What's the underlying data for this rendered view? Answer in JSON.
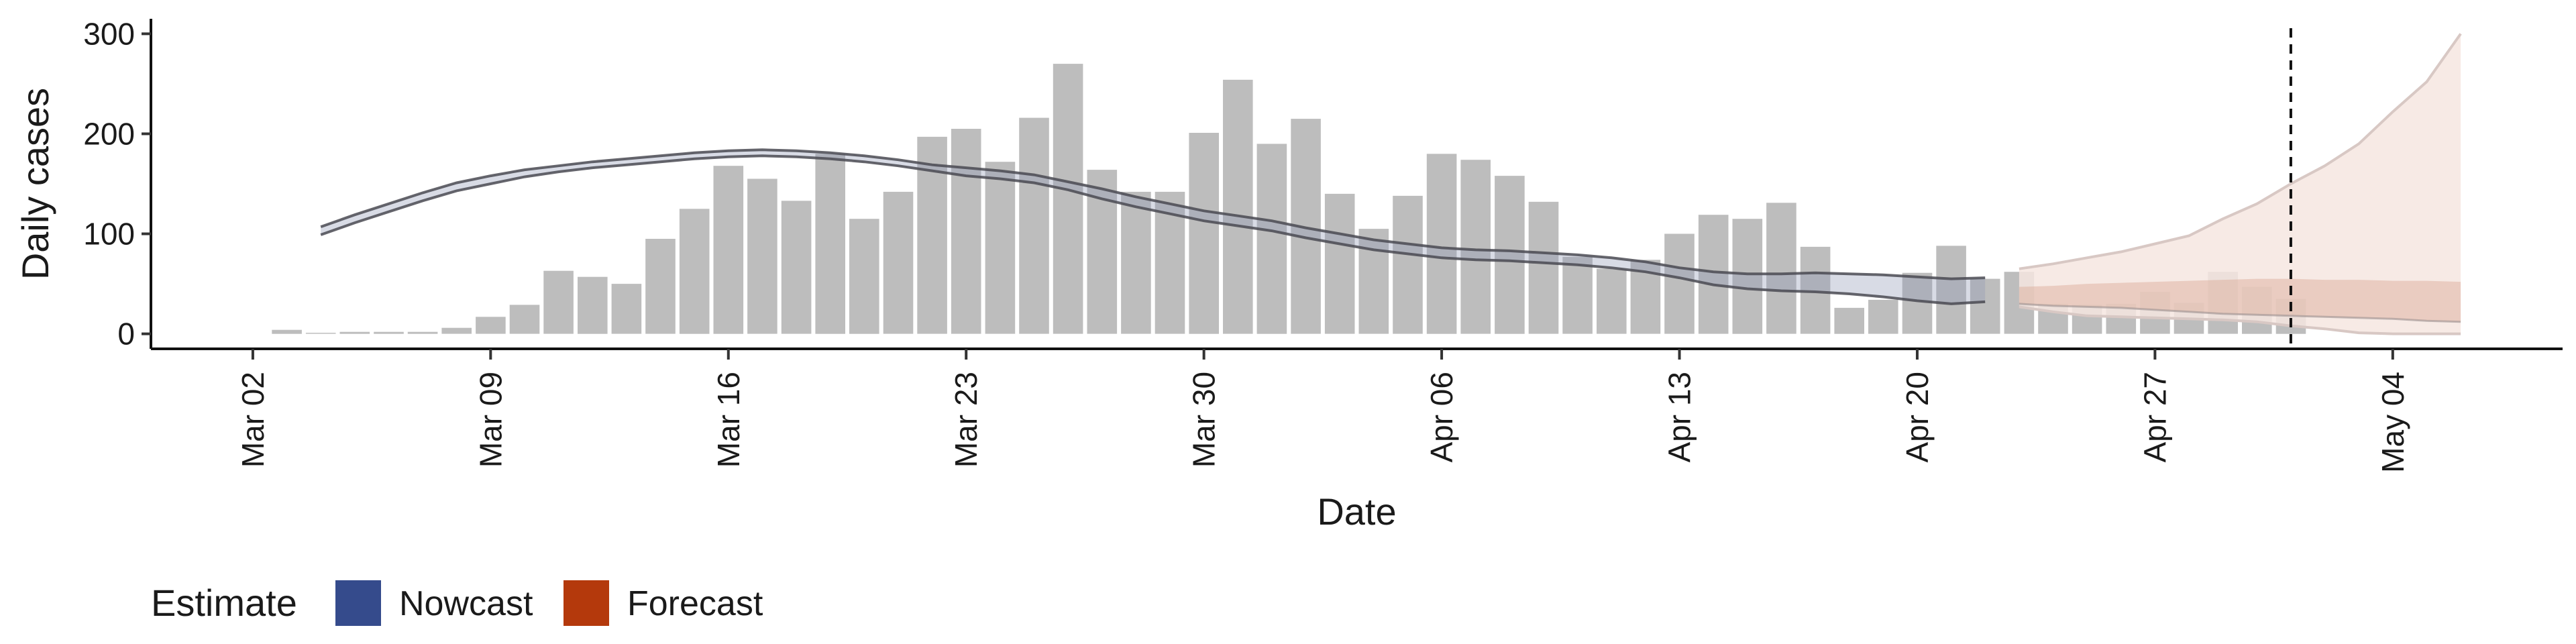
{
  "chart_data": {
    "type": "bar",
    "title": "",
    "xlabel": "Date",
    "ylabel": "Daily cases",
    "ylim": [
      -15,
      315
    ],
    "yticks": [
      0,
      100,
      200,
      300
    ],
    "xlim": [
      "2020-02-28",
      "2020-05-09"
    ],
    "xticks": [
      {
        "date": "2020-03-02",
        "label": "Mar 02"
      },
      {
        "date": "2020-03-09",
        "label": "Mar 09"
      },
      {
        "date": "2020-03-16",
        "label": "Mar 16"
      },
      {
        "date": "2020-03-23",
        "label": "Mar 23"
      },
      {
        "date": "2020-03-30",
        "label": "Mar 30"
      },
      {
        "date": "2020-04-06",
        "label": "Apr 06"
      },
      {
        "date": "2020-04-13",
        "label": "Apr 13"
      },
      {
        "date": "2020-04-20",
        "label": "Apr 20"
      },
      {
        "date": "2020-04-27",
        "label": "Apr 27"
      },
      {
        "date": "2020-05-04",
        "label": "May 04"
      }
    ],
    "grid": false,
    "legend_position": "bottom-left",
    "vline_date": "2020-05-01",
    "colors": {
      "bars": "#bdbdbd",
      "estimate_line": "#4a4a52",
      "estimate_band": "#8f97b4",
      "nowcast": "#354b8c",
      "forecast": "#b4390c",
      "forecast_inner_band": "#d9a894",
      "forecast_outer_band": "#f6e6e0",
      "forecast_outline": "#d8c8c4"
    },
    "observed_cases": {
      "x": [
        "2020-03-03",
        "2020-03-04",
        "2020-03-05",
        "2020-03-06",
        "2020-03-07",
        "2020-03-08",
        "2020-03-09",
        "2020-03-10",
        "2020-03-11",
        "2020-03-12",
        "2020-03-13",
        "2020-03-14",
        "2020-03-15",
        "2020-03-16",
        "2020-03-17",
        "2020-03-18",
        "2020-03-19",
        "2020-03-20",
        "2020-03-21",
        "2020-03-22",
        "2020-03-23",
        "2020-03-24",
        "2020-03-25",
        "2020-03-26",
        "2020-03-27",
        "2020-03-28",
        "2020-03-29",
        "2020-03-30",
        "2020-03-31",
        "2020-04-01",
        "2020-04-02",
        "2020-04-03",
        "2020-04-04",
        "2020-04-05",
        "2020-04-06",
        "2020-04-07",
        "2020-04-08",
        "2020-04-09",
        "2020-04-10",
        "2020-04-11",
        "2020-04-12",
        "2020-04-13",
        "2020-04-14",
        "2020-04-15",
        "2020-04-16",
        "2020-04-17",
        "2020-04-18",
        "2020-04-19",
        "2020-04-20",
        "2020-04-21",
        "2020-04-22",
        "2020-04-23",
        "2020-04-24",
        "2020-04-25",
        "2020-04-26",
        "2020-04-27",
        "2020-04-28",
        "2020-04-29",
        "2020-04-30",
        "2020-05-01"
      ],
      "values": [
        4,
        1,
        2,
        2,
        2,
        6,
        17,
        29,
        63,
        57,
        50,
        95,
        125,
        168,
        155,
        133,
        180,
        115,
        142,
        197,
        205,
        172,
        216,
        270,
        164,
        142,
        142,
        201,
        254,
        190,
        215,
        140,
        105,
        138,
        180,
        174,
        158,
        132,
        77,
        65,
        74,
        100,
        119,
        115,
        131,
        87,
        26,
        34,
        61,
        88,
        55,
        62,
        30,
        29,
        30,
        42,
        31,
        62,
        47,
        35
      ]
    },
    "estimate_median": {
      "x": [
        "2020-03-04",
        "2020-03-05",
        "2020-03-06",
        "2020-03-07",
        "2020-03-08",
        "2020-03-09",
        "2020-03-10",
        "2020-03-11",
        "2020-03-12",
        "2020-03-13",
        "2020-03-14",
        "2020-03-15",
        "2020-03-16",
        "2020-03-17",
        "2020-03-18",
        "2020-03-19",
        "2020-03-20",
        "2020-03-21",
        "2020-03-22",
        "2020-03-23",
        "2020-03-24",
        "2020-03-25",
        "2020-03-26",
        "2020-03-27",
        "2020-03-28",
        "2020-03-29",
        "2020-03-30",
        "2020-03-31",
        "2020-04-01",
        "2020-04-02",
        "2020-04-03",
        "2020-04-04",
        "2020-04-05",
        "2020-04-06",
        "2020-04-07",
        "2020-04-08",
        "2020-04-09",
        "2020-04-10",
        "2020-04-11",
        "2020-04-12",
        "2020-04-13",
        "2020-04-14",
        "2020-04-15",
        "2020-04-16",
        "2020-04-17",
        "2020-04-18",
        "2020-04-19",
        "2020-04-20",
        "2020-04-21",
        "2020-04-22"
      ],
      "values": [
        103,
        115,
        126,
        137,
        147,
        154,
        160,
        165,
        169,
        172,
        175,
        178,
        180,
        181,
        180,
        178,
        175,
        171,
        166,
        162,
        159,
        155,
        148,
        140,
        132,
        125,
        118,
        113,
        108,
        101,
        95,
        89,
        85,
        81,
        79,
        78,
        76,
        74,
        71,
        67,
        61,
        56,
        53,
        52,
        52,
        51,
        49,
        45,
        42,
        43
      ],
      "lower": [
        99,
        111,
        122,
        133,
        143,
        150,
        157,
        162,
        166,
        169,
        172,
        175,
        177,
        178,
        177,
        175,
        172,
        168,
        163,
        158,
        155,
        151,
        144,
        135,
        127,
        120,
        113,
        108,
        103,
        96,
        90,
        84,
        80,
        76,
        74,
        73,
        71,
        69,
        66,
        62,
        56,
        49,
        45,
        43,
        42,
        40,
        37,
        33,
        30,
        32
      ],
      "upper": [
        107,
        119,
        130,
        141,
        151,
        158,
        164,
        168,
        172,
        175,
        178,
        181,
        183,
        184,
        183,
        181,
        178,
        174,
        169,
        166,
        163,
        159,
        152,
        145,
        137,
        130,
        123,
        118,
        113,
        106,
        100,
        94,
        90,
        86,
        84,
        83,
        81,
        79,
        76,
        72,
        66,
        62,
        60,
        60,
        61,
        60,
        59,
        57,
        55,
        56
      ]
    },
    "forecast": {
      "x": [
        "2020-04-23",
        "2020-04-24",
        "2020-04-25",
        "2020-04-26",
        "2020-04-27",
        "2020-04-28",
        "2020-04-29",
        "2020-04-30",
        "2020-05-01",
        "2020-05-02",
        "2020-05-03",
        "2020-05-04",
        "2020-05-05",
        "2020-05-06"
      ],
      "inner_lower": [
        30,
        28,
        27,
        26,
        24,
        22,
        20,
        19,
        18,
        17,
        16,
        15,
        13,
        12
      ],
      "inner_upper": [
        47,
        48,
        50,
        51,
        52,
        53,
        54,
        55,
        55,
        54,
        54,
        53,
        53,
        52
      ],
      "outer_lower": [
        27,
        22,
        18,
        17,
        16,
        15,
        14,
        12,
        8,
        5,
        1,
        0,
        0,
        0
      ],
      "outer_upper": [
        65,
        70,
        76,
        82,
        90,
        98,
        115,
        130,
        150,
        168,
        190,
        222,
        252,
        300
      ]
    },
    "legend": {
      "title": "Estimate",
      "items": [
        {
          "label": "Nowcast",
          "color": "#354b8c"
        },
        {
          "label": "Forecast",
          "color": "#b4390c"
        }
      ]
    }
  }
}
